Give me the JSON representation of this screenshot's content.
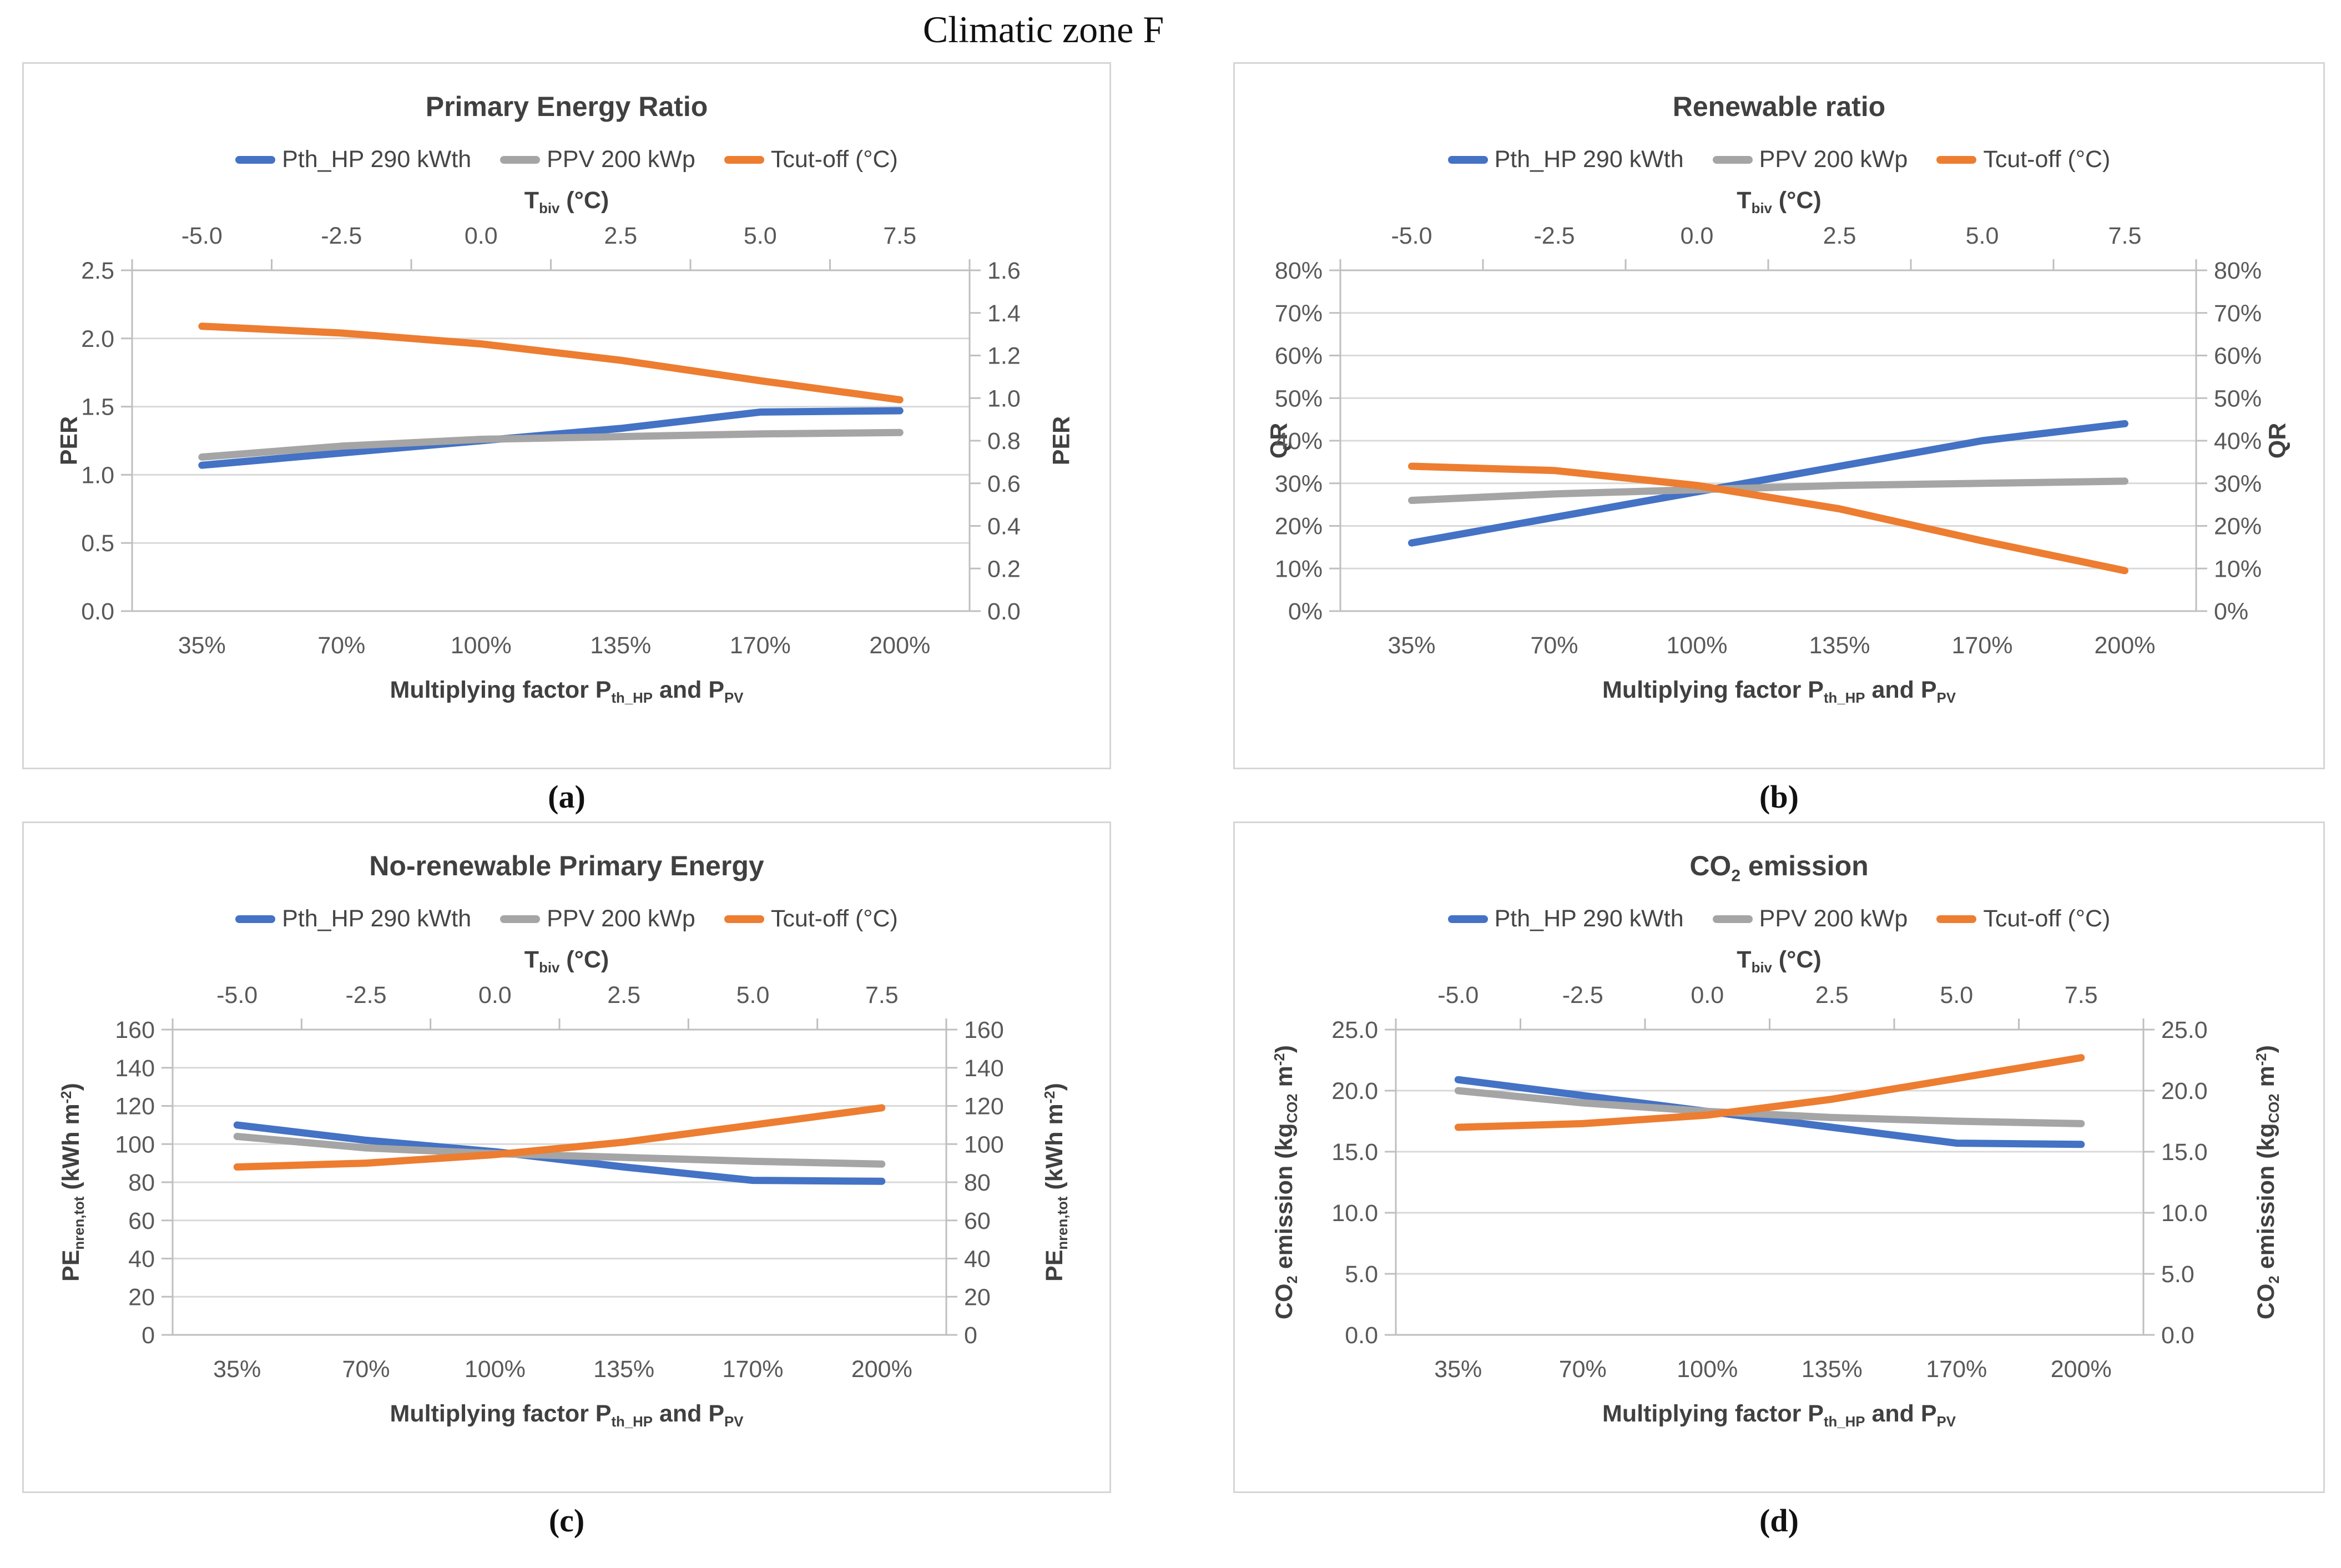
{
  "page_title": "Climatic zone F",
  "colors": {
    "blue": "#4472C4",
    "gray": "#A5A5A5",
    "orange": "#ED7D31",
    "gridline": "#D9D9D9",
    "axis_line": "#BFBFBF",
    "tick_text": "#595959",
    "title_text": "#404040"
  },
  "legend": [
    {
      "label": "Pth_HP 290 kWth",
      "color": "#4472C4"
    },
    {
      "label": "PPV 200 kWp",
      "color": "#A5A5A5"
    },
    {
      "label": "Tcut-off (°C)",
      "color": "#ED7D31"
    }
  ],
  "shared": {
    "top_axis_title_parts": [
      {
        "t": "T"
      },
      {
        "t": "biv",
        "sub": true
      },
      {
        "t": " (°C)"
      }
    ],
    "bottom_axis_title_parts": [
      {
        "t": "Multiplying factor P"
      },
      {
        "t": "th_HP",
        "sub": true
      },
      {
        "t": " and  P"
      },
      {
        "t": "PV",
        "sub": true
      }
    ]
  },
  "panels": [
    {
      "caption": "(a)",
      "title_parts": [
        {
          "t": "Primary Energy Ratio"
        }
      ],
      "y_left_title_parts": [
        {
          "t": "PER"
        }
      ],
      "y_right_title_parts": [
        {
          "t": "PER"
        }
      ]
    },
    {
      "caption": "(b)",
      "title_parts": [
        {
          "t": "Renewable ratio"
        }
      ],
      "y_left_title_parts": [
        {
          "t": "QR"
        }
      ],
      "y_right_title_parts": [
        {
          "t": "QR"
        }
      ]
    },
    {
      "caption": "(c)",
      "title_parts": [
        {
          "t": "No-renewable Primary Energy"
        }
      ],
      "y_left_title_parts": [
        {
          "t": "PE"
        },
        {
          "t": "nren,tot",
          "sub": true
        },
        {
          "t": "  (kWh m"
        },
        {
          "t": "-2",
          "sup": true
        },
        {
          "t": ")"
        }
      ],
      "y_right_title_parts": [
        {
          "t": "PE"
        },
        {
          "t": "nren,tot",
          "sub": true
        },
        {
          "t": "  (kWh m"
        },
        {
          "t": "-2",
          "sup": true
        },
        {
          "t": ")"
        }
      ]
    },
    {
      "caption": "(d)",
      "title_parts": [
        {
          "t": "CO"
        },
        {
          "t": "2",
          "sub": true
        },
        {
          "t": " emission"
        }
      ],
      "y_left_title_parts": [
        {
          "t": "CO"
        },
        {
          "t": "2",
          "sub": true
        },
        {
          "t": " emission  (kg"
        },
        {
          "t": "CO2",
          "sub": true
        },
        {
          "t": " m"
        },
        {
          "t": "-2",
          "sup": true
        },
        {
          "t": ")"
        }
      ],
      "y_right_title_parts": [
        {
          "t": "CO"
        },
        {
          "t": "2",
          "sub": true
        },
        {
          "t": " emission  (kg"
        },
        {
          "t": "CO2",
          "sub": true
        },
        {
          "t": " m"
        },
        {
          "t": "-2",
          "sup": true
        },
        {
          "t": ")"
        }
      ]
    }
  ],
  "chart_data": [
    {
      "type": "line",
      "title": "Primary Energy Ratio",
      "categories": [
        "35%",
        "70%",
        "100%",
        "135%",
        "170%",
        "200%"
      ],
      "x_top_labels": [
        "-5.0",
        "-2.5",
        "0.0",
        "2.5",
        "5.0",
        "7.5"
      ],
      "xlabel": "Multiplying factor Pth_HP and PPV",
      "x2label": "Tbiv (°C)",
      "ylabel": "PER",
      "y2label": "PER",
      "ylim": [
        0,
        2.5
      ],
      "y2lim": [
        0,
        1.6
      ],
      "y_left_labels": [
        "2.5",
        "2.0",
        "1.5",
        "1.0",
        "0.5",
        "0.0"
      ],
      "y_right_labels": [
        "1.6",
        "1.4",
        "1.2",
        "1.0",
        "0.8",
        "0.6",
        "0.4",
        "0.2",
        "0.0"
      ],
      "grid": true,
      "legend_position": "top",
      "series": [
        {
          "name": "Pth_HP 290 kWth",
          "color": "#4472C4",
          "values": [
            1.07,
            1.16,
            1.25,
            1.34,
            1.46,
            1.47
          ]
        },
        {
          "name": "PPV 200 kWp",
          "color": "#A5A5A5",
          "values": [
            1.13,
            1.21,
            1.26,
            1.28,
            1.3,
            1.31
          ]
        },
        {
          "name": "Tcut-off (°C)",
          "color": "#ED7D31",
          "values": [
            2.09,
            2.04,
            1.96,
            1.84,
            1.69,
            1.55
          ]
        }
      ]
    },
    {
      "type": "line",
      "title": "Renewable ratio",
      "categories": [
        "35%",
        "70%",
        "100%",
        "135%",
        "170%",
        "200%"
      ],
      "x_top_labels": [
        "-5.0",
        "-2.5",
        "0.0",
        "2.5",
        "5.0",
        "7.5"
      ],
      "xlabel": "Multiplying factor Pth_HP and PPV",
      "x2label": "Tbiv (°C)",
      "ylabel": "QR",
      "y2label": "QR",
      "ylim": [
        0,
        80
      ],
      "y2lim": [
        0,
        80
      ],
      "y_left_labels": [
        "80%",
        "70%",
        "60%",
        "50%",
        "40%",
        "30%",
        "20%",
        "10%",
        "0%"
      ],
      "y_right_labels": [
        "80%",
        "70%",
        "60%",
        "50%",
        "40%",
        "30%",
        "20%",
        "10%",
        "0%"
      ],
      "grid": true,
      "legend_position": "top",
      "series": [
        {
          "name": "Pth_HP 290 kWth",
          "color": "#4472C4",
          "values": [
            16,
            22,
            28,
            34,
            40,
            44
          ]
        },
        {
          "name": "PPV 200 kWp",
          "color": "#A5A5A5",
          "values": [
            26,
            27.5,
            28.5,
            29.5,
            30,
            30.5
          ]
        },
        {
          "name": "Tcut-off (°C)",
          "color": "#ED7D31",
          "values": [
            34,
            33,
            29.5,
            24,
            16.5,
            9.5
          ]
        }
      ]
    },
    {
      "type": "line",
      "title": "No-renewable Primary Energy",
      "categories": [
        "35%",
        "70%",
        "100%",
        "135%",
        "170%",
        "200%"
      ],
      "x_top_labels": [
        "-5.0",
        "-2.5",
        "0.0",
        "2.5",
        "5.0",
        "7.5"
      ],
      "xlabel": "Multiplying factor Pth_HP and PPV",
      "x2label": "Tbiv (°C)",
      "ylabel": "PEnren,tot (kWh m-2)",
      "y2label": "PEnren,tot (kWh m-2)",
      "ylim": [
        0,
        160
      ],
      "y2lim": [
        0,
        160
      ],
      "y_left_labels": [
        "160",
        "140",
        "120",
        "100",
        "80",
        "60",
        "40",
        "20",
        "0"
      ],
      "y_right_labels": [
        "160",
        "140",
        "120",
        "100",
        "80",
        "60",
        "40",
        "20",
        "0"
      ],
      "grid": true,
      "legend_position": "top",
      "series": [
        {
          "name": "Pth_HP 290 kWth",
          "color": "#4472C4",
          "values": [
            110,
            102,
            96,
            88,
            81,
            80.5
          ]
        },
        {
          "name": "PPV 200 kWp",
          "color": "#A5A5A5",
          "values": [
            104,
            98,
            95,
            93,
            91,
            89.5
          ]
        },
        {
          "name": "Tcut-off (°C)",
          "color": "#ED7D31",
          "values": [
            88,
            90,
            94.5,
            101,
            110,
            119
          ]
        }
      ]
    },
    {
      "type": "line",
      "title": "CO2 emission",
      "categories": [
        "35%",
        "70%",
        "100%",
        "135%",
        "170%",
        "200%"
      ],
      "x_top_labels": [
        "-5.0",
        "-2.5",
        "0.0",
        "2.5",
        "5.0",
        "7.5"
      ],
      "xlabel": "Multiplying factor Pth_HP and PPV",
      "x2label": "Tbiv (°C)",
      "ylabel": "CO2 emission (kgCO2 m-2)",
      "y2label": "CO2 emission (kgCO2 m-2)",
      "ylim": [
        0,
        25
      ],
      "y2lim": [
        0,
        25
      ],
      "y_left_labels": [
        "25.0",
        "20.0",
        "15.0",
        "10.0",
        "5.0",
        "0.0"
      ],
      "y_right_labels": [
        "25.0",
        "20.0",
        "15.0",
        "10.0",
        "5.0",
        "0.0"
      ],
      "grid": true,
      "legend_position": "top",
      "series": [
        {
          "name": "Pth_HP 290 kWth",
          "color": "#4472C4",
          "values": [
            20.9,
            19.6,
            18.3,
            17.0,
            15.7,
            15.6
          ]
        },
        {
          "name": "PPV 200 kWp",
          "color": "#A5A5A5",
          "values": [
            20.0,
            19.0,
            18.3,
            17.8,
            17.5,
            17.3
          ]
        },
        {
          "name": "Tcut-off (°C)",
          "color": "#ED7D31",
          "values": [
            17.0,
            17.3,
            18.0,
            19.3,
            21.0,
            22.7
          ]
        }
      ]
    }
  ]
}
